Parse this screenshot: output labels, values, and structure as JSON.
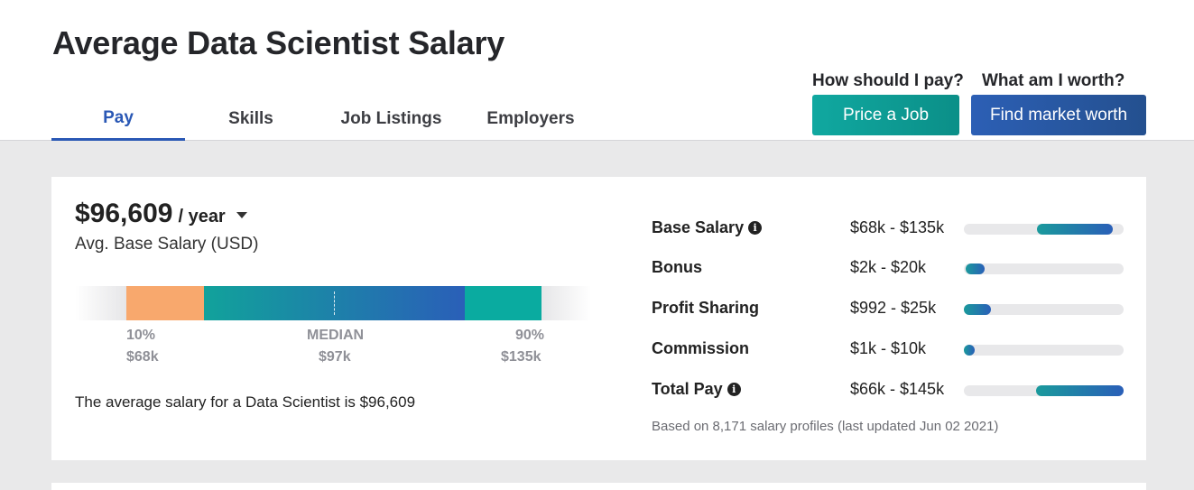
{
  "page": {
    "title": "Average Data Scientist Salary"
  },
  "tabs": [
    {
      "label": "Pay",
      "active": true
    },
    {
      "label": "Skills",
      "active": false
    },
    {
      "label": "Job Listings",
      "active": false
    },
    {
      "label": "Employers",
      "active": false
    }
  ],
  "cta": {
    "price_question": "How should I pay?",
    "price_button": "Price a Job",
    "worth_question": "What am I worth?",
    "worth_button": "Find market worth"
  },
  "salary": {
    "amount": "$96,609",
    "period": "/ year",
    "label": "Avg. Base Salary (USD)",
    "range": {
      "p10_label": "10%",
      "p10_value": "$68k",
      "median_label": "MEDIAN",
      "median_value": "$97k",
      "p90_label": "90%",
      "p90_value": "$135k"
    },
    "summary": "The average salary for a Data Scientist is $96,609"
  },
  "compensation": [
    {
      "name": "Base Salary",
      "range": "$68k - $135k",
      "info": true,
      "bar_start": 0.46,
      "bar_end": 0.93
    },
    {
      "name": "Bonus",
      "range": "$2k - $20k",
      "info": false,
      "bar_start": 0.01,
      "bar_end": 0.13
    },
    {
      "name": "Profit Sharing",
      "range": "$992 - $25k",
      "info": false,
      "bar_start": 0.0,
      "bar_end": 0.17
    },
    {
      "name": "Commission",
      "range": "$1k - $10k",
      "info": false,
      "bar_start": 0.0,
      "bar_end": 0.07
    },
    {
      "name": "Total Pay",
      "range": "$66k - $145k",
      "info": true,
      "bar_start": 0.45,
      "bar_end": 1.0
    }
  ],
  "footnote": "Based on 8,171 salary profiles (last updated Jun 02 2021)",
  "colors": {
    "accent_blue": "#2a58b5",
    "teal": "#10a8a0",
    "orange": "#f8a86d"
  }
}
